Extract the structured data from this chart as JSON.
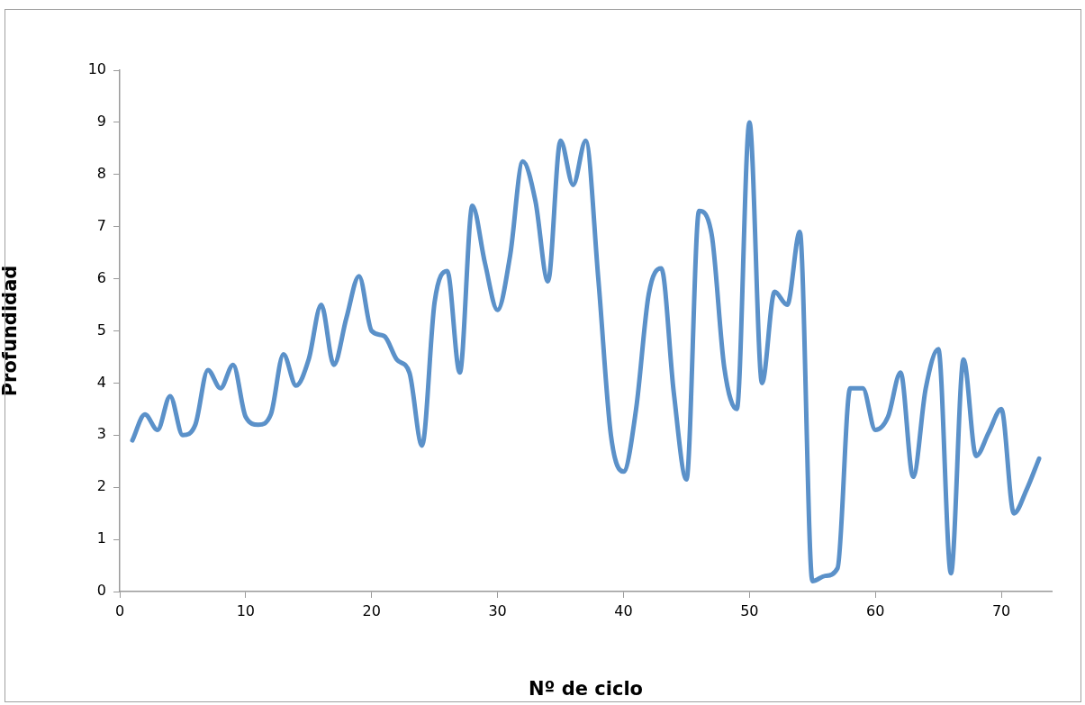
{
  "chart_data": {
    "type": "line",
    "xlabel": "Nº de ciclo",
    "ylabel": "Profundidad",
    "x": [
      1,
      2,
      3,
      4,
      5,
      6,
      7,
      8,
      9,
      10,
      11,
      12,
      13,
      14,
      15,
      16,
      17,
      18,
      19,
      20,
      21,
      22,
      23,
      24,
      25,
      26,
      27,
      28,
      29,
      30,
      31,
      32,
      33,
      34,
      35,
      36,
      37,
      38,
      39,
      40,
      41,
      42,
      43,
      44,
      45,
      46,
      47,
      48,
      49,
      50,
      51,
      52,
      53,
      54,
      55,
      56,
      57,
      58,
      59,
      60,
      61,
      62,
      63,
      64,
      65,
      66,
      67,
      68,
      69,
      70,
      71,
      72,
      73
    ],
    "series": [
      {
        "color": "#5b91c9",
        "values": [
          2.9,
          3.4,
          3.1,
          3.75,
          3.0,
          3.2,
          4.25,
          3.9,
          4.35,
          3.35,
          3.2,
          3.4,
          4.55,
          3.95,
          4.45,
          5.5,
          4.35,
          5.25,
          6.05,
          5.0,
          4.9,
          4.45,
          4.2,
          2.8,
          5.55,
          6.15,
          4.2,
          7.4,
          6.3,
          5.4,
          6.45,
          8.25,
          7.5,
          5.95,
          8.65,
          7.8,
          8.65,
          6.0,
          3.0,
          2.3,
          3.5,
          5.7,
          6.2,
          3.8,
          2.15,
          7.3,
          6.85,
          4.3,
          3.5,
          9.0,
          4.0,
          5.75,
          5.5,
          6.9,
          0.2,
          0.3,
          0.45,
          3.9,
          3.9,
          3.1,
          3.35,
          4.2,
          2.2,
          3.9,
          4.65,
          0.35,
          4.45,
          2.6,
          3.05,
          3.5,
          1.5,
          1.95,
          2.55
        ]
      }
    ],
    "xlim": [
      0,
      74
    ],
    "xticks": [
      0,
      10,
      20,
      30,
      40,
      50,
      60,
      70
    ],
    "ylim": [
      0,
      10
    ],
    "yticks": [
      0,
      1,
      2,
      3,
      4,
      5,
      6,
      7,
      8,
      9,
      10
    ],
    "grid": false,
    "legend": false,
    "marker": "none",
    "line_style": "solid"
  }
}
